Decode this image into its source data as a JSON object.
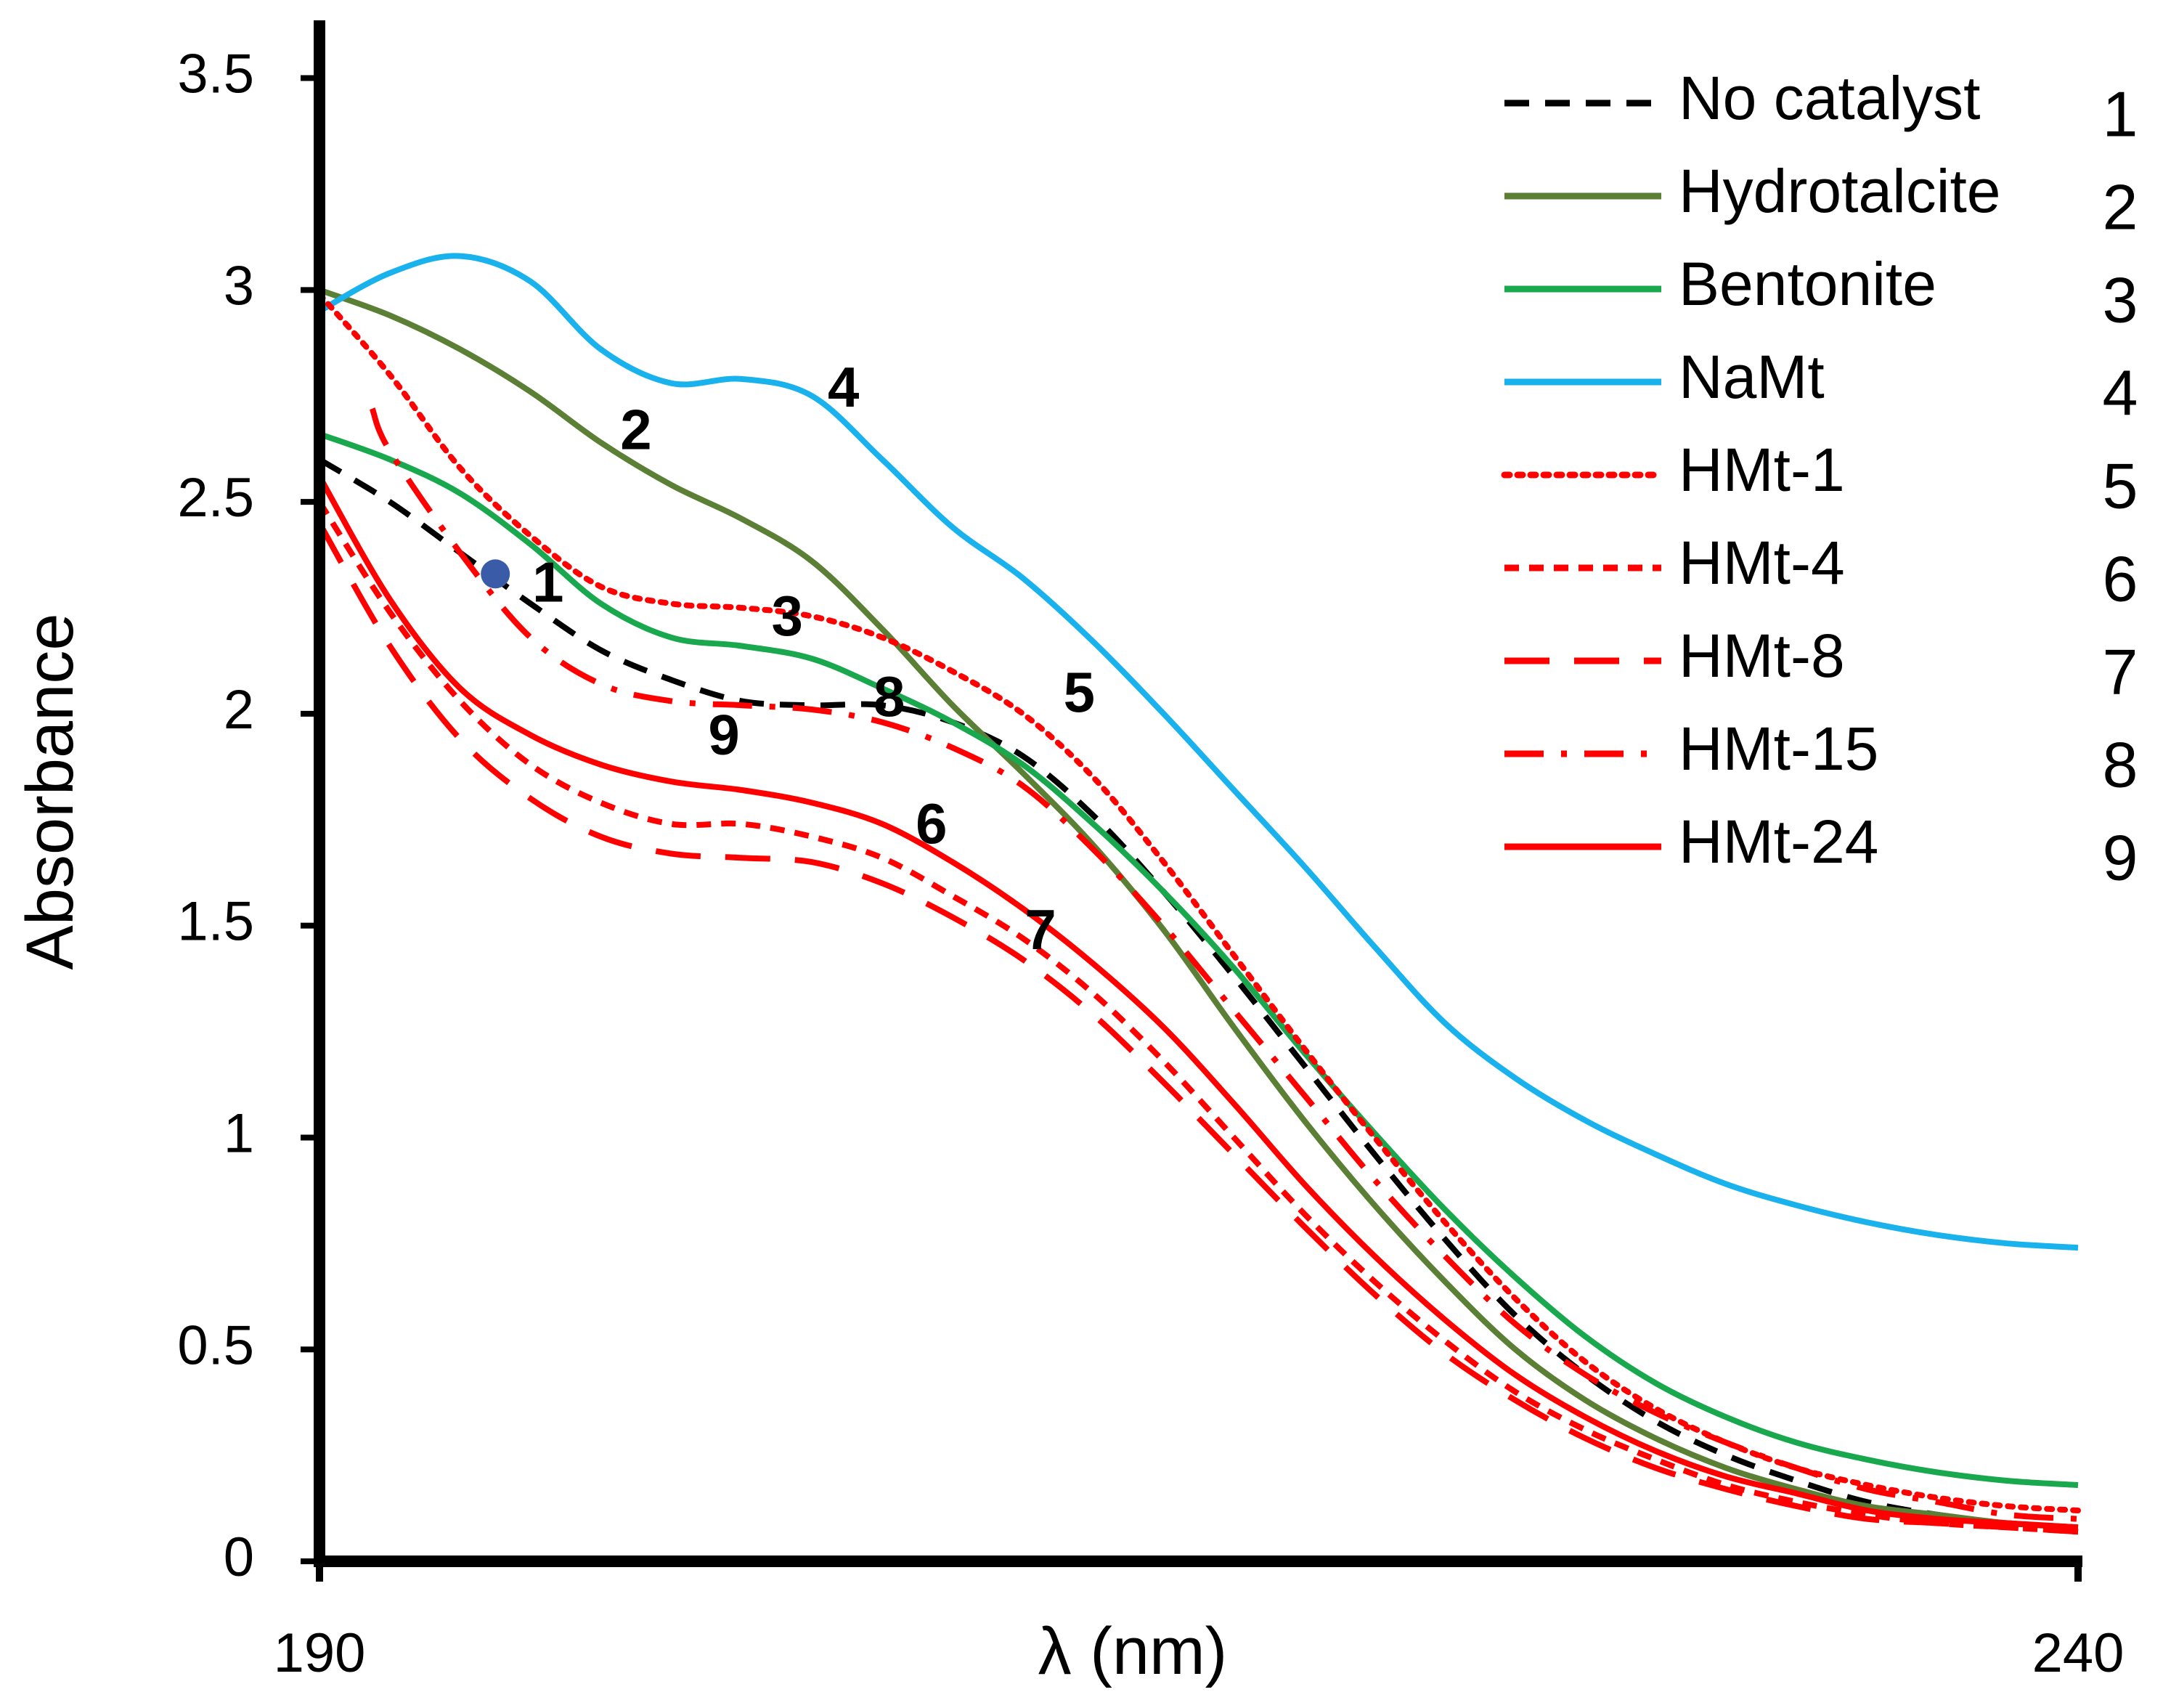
{
  "chart_data": {
    "type": "line",
    "title": "",
    "xlabel": "λ (nm)",
    "ylabel": "Absorbance",
    "xlim": [
      190,
      240
    ],
    "ylim": [
      0,
      3.5
    ],
    "ymax_axis": 3.65,
    "x_ticks": [
      190,
      240
    ],
    "x_tick_labels": [
      "190",
      "240"
    ],
    "y_ticks": [
      0,
      0.5,
      1,
      1.5,
      2,
      2.5,
      3,
      3.5
    ],
    "y_tick_labels": [
      "0",
      "0.5",
      "1",
      "1.5",
      "2",
      "2.5",
      "3",
      "3.5"
    ],
    "grid": false,
    "legend_position": "top-right",
    "series": [
      {
        "name": "No catalyst",
        "number": "1",
        "color": "#000000",
        "dash": "dash",
        "x": [
          190,
          192,
          194,
          196,
          198,
          200,
          202,
          204,
          206,
          208,
          210,
          212,
          214,
          216,
          218,
          220,
          222,
          224,
          226,
          228,
          230,
          232,
          234,
          236,
          238,
          240
        ],
        "y": [
          2.6,
          2.5,
          2.38,
          2.26,
          2.15,
          2.08,
          2.03,
          2.02,
          2.02,
          1.98,
          1.9,
          1.76,
          1.58,
          1.38,
          1.17,
          0.96,
          0.76,
          0.58,
          0.44,
          0.33,
          0.25,
          0.19,
          0.14,
          0.11,
          0.09,
          0.08
        ]
      },
      {
        "name": "Hydrotalcite",
        "number": "2",
        "color": "#5a7f35",
        "dash": "solid",
        "x": [
          190,
          192,
          194,
          196,
          198,
          200,
          202,
          204,
          206,
          208,
          210,
          212,
          214,
          216,
          218,
          220,
          222,
          224,
          226,
          228,
          230,
          232,
          234,
          236,
          238,
          240
        ],
        "y": [
          3.0,
          2.94,
          2.86,
          2.76,
          2.64,
          2.54,
          2.46,
          2.36,
          2.2,
          2.02,
          1.86,
          1.69,
          1.49,
          1.26,
          1.04,
          0.84,
          0.66,
          0.5,
          0.38,
          0.29,
          0.22,
          0.17,
          0.13,
          0.11,
          0.09,
          0.08
        ]
      },
      {
        "name": "Bentonite",
        "number": "3",
        "color": "#1aa84f",
        "dash": "solid",
        "x": [
          190,
          192,
          194,
          196,
          198,
          200,
          202,
          204,
          206,
          208,
          210,
          212,
          214,
          216,
          218,
          220,
          222,
          224,
          226,
          228,
          230,
          232,
          234,
          236,
          238,
          240
        ],
        "y": [
          2.66,
          2.6,
          2.52,
          2.4,
          2.26,
          2.18,
          2.16,
          2.13,
          2.06,
          1.98,
          1.88,
          1.74,
          1.58,
          1.4,
          1.2,
          1.01,
          0.83,
          0.67,
          0.53,
          0.42,
          0.34,
          0.28,
          0.24,
          0.21,
          0.19,
          0.18
        ]
      },
      {
        "name": "NaMt",
        "number": "4",
        "color": "#1ab2ec",
        "dash": "solid",
        "x": [
          190,
          192,
          194,
          196,
          198,
          200,
          202,
          204,
          206,
          208,
          210,
          212,
          214,
          216,
          218,
          220,
          222,
          224,
          226,
          228,
          230,
          232,
          234,
          236,
          238,
          240
        ],
        "y": [
          2.95,
          3.04,
          3.08,
          3.02,
          2.86,
          2.78,
          2.79,
          2.75,
          2.6,
          2.44,
          2.32,
          2.17,
          2.0,
          1.82,
          1.64,
          1.45,
          1.27,
          1.14,
          1.04,
          0.96,
          0.89,
          0.84,
          0.8,
          0.77,
          0.75,
          0.74
        ]
      },
      {
        "name": "HMt-1",
        "number": "5",
        "color": "#ff0000",
        "dash": "dot",
        "x": [
          190,
          192,
          194,
          196,
          198,
          200,
          202,
          204,
          206,
          208,
          210,
          212,
          214,
          216,
          218,
          220,
          222,
          224,
          226,
          228,
          230,
          232,
          234,
          236,
          238,
          240
        ],
        "y": [
          2.99,
          2.8,
          2.58,
          2.42,
          2.3,
          2.26,
          2.25,
          2.23,
          2.18,
          2.1,
          2.0,
          1.85,
          1.65,
          1.43,
          1.21,
          1.0,
          0.8,
          0.62,
          0.47,
          0.36,
          0.28,
          0.22,
          0.18,
          0.15,
          0.13,
          0.12
        ]
      },
      {
        "name": "HMt-4",
        "number": "6",
        "color": "#ff0000",
        "dash": "dash-short",
        "x": [
          190,
          192,
          194,
          196,
          198,
          200,
          202,
          204,
          206,
          208,
          210,
          212,
          214,
          216,
          218,
          220,
          222,
          224,
          226,
          228,
          230,
          232,
          234,
          236,
          238,
          240
        ],
        "y": [
          2.5,
          2.24,
          2.03,
          1.88,
          1.79,
          1.74,
          1.74,
          1.71,
          1.66,
          1.57,
          1.47,
          1.34,
          1.18,
          1.0,
          0.82,
          0.66,
          0.52,
          0.4,
          0.31,
          0.24,
          0.18,
          0.14,
          0.11,
          0.09,
          0.08,
          0.07
        ]
      },
      {
        "name": "HMt-8",
        "number": "7",
        "color": "#ff0000",
        "dash": "dash-long",
        "x": [
          190,
          192,
          194,
          196,
          198,
          200,
          202,
          204,
          206,
          208,
          210,
          212,
          214,
          216,
          218,
          220,
          222,
          224,
          226,
          228,
          230,
          232,
          234,
          236,
          238,
          240
        ],
        "y": [
          2.45,
          2.16,
          1.94,
          1.8,
          1.71,
          1.67,
          1.66,
          1.65,
          1.6,
          1.52,
          1.42,
          1.29,
          1.13,
          0.96,
          0.79,
          0.63,
          0.49,
          0.38,
          0.29,
          0.22,
          0.17,
          0.13,
          0.1,
          0.09,
          0.08,
          0.07
        ]
      },
      {
        "name": "HMt-15",
        "number": "8",
        "color": "#ff0000",
        "dash": "dash-dot",
        "x": [
          191.5,
          192,
          194,
          196,
          198,
          200,
          202,
          204,
          206,
          208,
          210,
          212,
          214,
          216,
          218,
          220,
          222,
          224,
          226,
          228,
          230,
          232,
          234,
          236,
          238,
          240
        ],
        "y": [
          2.72,
          2.62,
          2.38,
          2.18,
          2.07,
          2.03,
          2.02,
          2.01,
          1.98,
          1.92,
          1.83,
          1.68,
          1.5,
          1.3,
          1.1,
          0.9,
          0.72,
          0.56,
          0.44,
          0.35,
          0.28,
          0.22,
          0.17,
          0.14,
          0.11,
          0.1
        ]
      },
      {
        "name": "HMt-24",
        "number": "9",
        "color": "#ff0000",
        "dash": "solid",
        "x": [
          190,
          192,
          194,
          196,
          198,
          200,
          202,
          204,
          206,
          208,
          210,
          212,
          214,
          216,
          218,
          220,
          222,
          224,
          226,
          228,
          230,
          232,
          234,
          236,
          238,
          240
        ],
        "y": [
          2.56,
          2.27,
          2.06,
          1.95,
          1.88,
          1.84,
          1.82,
          1.79,
          1.74,
          1.65,
          1.54,
          1.41,
          1.26,
          1.08,
          0.89,
          0.72,
          0.57,
          0.44,
          0.34,
          0.26,
          0.2,
          0.16,
          0.12,
          0.1,
          0.09,
          0.08
        ]
      }
    ],
    "curve_labels": [
      {
        "text": "1",
        "x": 196.5,
        "y": 2.3
      },
      {
        "text": "2",
        "x": 199.0,
        "y": 2.66
      },
      {
        "text": "3",
        "x": 203.3,
        "y": 2.22
      },
      {
        "text": "4",
        "x": 204.9,
        "y": 2.76
      },
      {
        "text": "5",
        "x": 211.6,
        "y": 2.04
      },
      {
        "text": "6",
        "x": 207.4,
        "y": 1.73
      },
      {
        "text": "7",
        "x": 210.5,
        "y": 1.48
      },
      {
        "text": "8",
        "x": 206.2,
        "y": 2.03
      },
      {
        "text": "9",
        "x": 201.5,
        "y": 1.94
      }
    ],
    "marker": {
      "x": 195.0,
      "y": 2.33,
      "color": "#3a5ba8"
    }
  }
}
